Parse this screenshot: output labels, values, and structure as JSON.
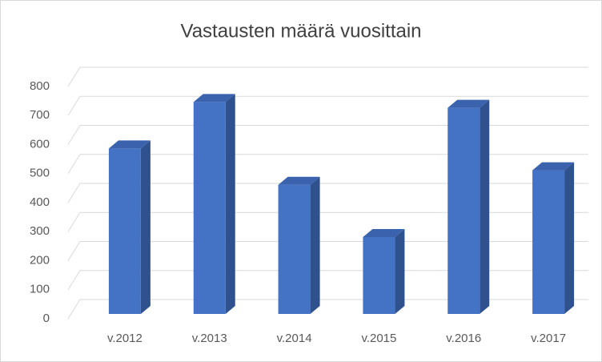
{
  "chart_data": {
    "type": "bar3d",
    "title": "Vastausten määrä vuosittain",
    "categories": [
      "v.2012",
      "v.2013",
      "v.2014",
      "v.2015",
      "v.2016",
      "v.2017"
    ],
    "values": [
      570,
      730,
      445,
      265,
      710,
      495
    ],
    "color": "#4472c4",
    "ylim": [
      0,
      800
    ],
    "yticks": [
      0,
      100,
      200,
      300,
      400,
      500,
      600,
      700,
      800
    ],
    "grid": true
  }
}
